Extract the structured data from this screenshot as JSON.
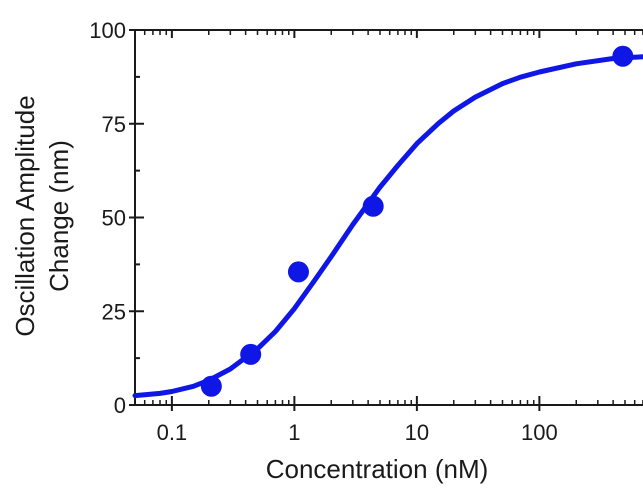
{
  "chart_data": {
    "type": "scatter",
    "title": "",
    "xlabel": "Concentration (nM)",
    "ylabel_lines": [
      "Oscillation Amplitude",
      "Change (nm)"
    ],
    "x_scale": "log",
    "xlim": [
      0.05,
      800
    ],
    "ylim": [
      0,
      100
    ],
    "x_ticks": [
      0.1,
      1,
      10,
      100
    ],
    "x_tick_labels": [
      "0.1",
      "1",
      "10",
      "100"
    ],
    "y_ticks": [
      0,
      25,
      50,
      75,
      100
    ],
    "y_tick_labels": [
      "0",
      "25",
      "50",
      "75",
      "100"
    ],
    "grid": false,
    "color": "#0f17e6",
    "series": [
      {
        "kind": "points",
        "x": [
          0.21,
          0.44,
          1.08,
          4.4,
          480
        ],
        "y": [
          5,
          13.5,
          35.5,
          53,
          93
        ]
      },
      {
        "kind": "fit-curve",
        "x": [
          0.05,
          0.08,
          0.1,
          0.15,
          0.2,
          0.3,
          0.5,
          0.7,
          1,
          1.5,
          2,
          3,
          5,
          7,
          10,
          15,
          20,
          30,
          50,
          70,
          100,
          200,
          400,
          800
        ],
        "y": [
          2.5,
          3.1,
          3.6,
          5.0,
          6.6,
          9.6,
          15.0,
          19.6,
          25.7,
          33.7,
          39.6,
          48.1,
          58.1,
          63.9,
          69.7,
          75.1,
          78.4,
          82.1,
          85.7,
          87.4,
          88.8,
          91.0,
          92.4,
          93.0
        ]
      }
    ]
  }
}
